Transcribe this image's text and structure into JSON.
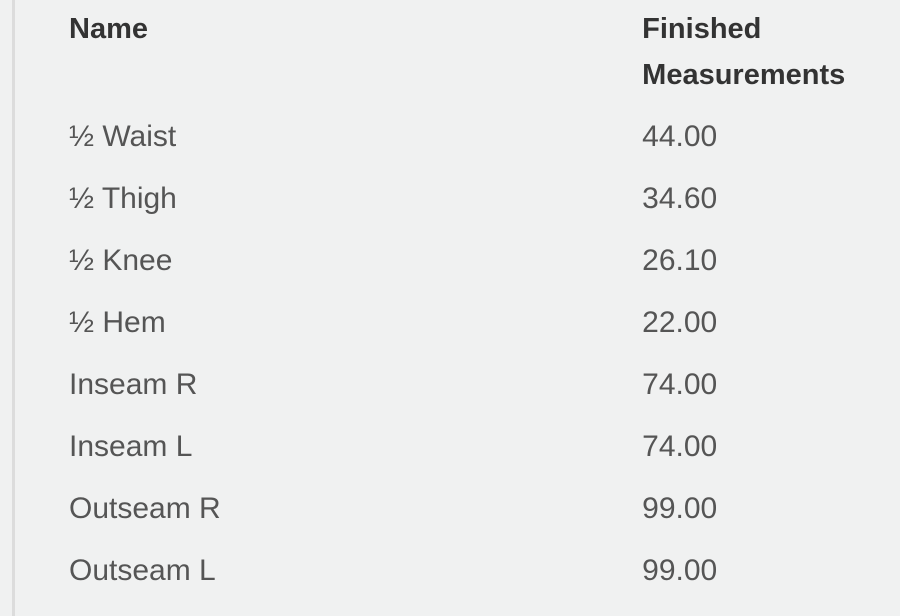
{
  "table": {
    "headers": [
      "Name",
      "Finished Measurements"
    ],
    "rows": [
      [
        "½ Waist",
        "44.00"
      ],
      [
        "½ Thigh",
        "34.60"
      ],
      [
        "½ Knee",
        "26.10"
      ],
      [
        "½ Hem",
        "22.00"
      ],
      [
        "Inseam R",
        "74.00"
      ],
      [
        "Inseam L",
        "74.00"
      ],
      [
        "Outseam R",
        "99.00"
      ],
      [
        "Outseam L",
        "99.00"
      ]
    ]
  }
}
